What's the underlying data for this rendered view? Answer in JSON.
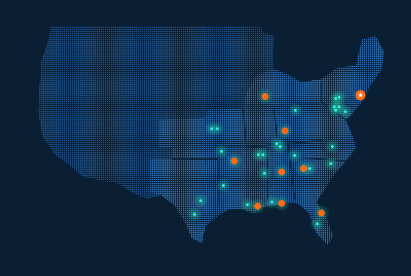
{
  "map": {
    "projection_bounds": {
      "lon": [
        -125,
        -67
      ],
      "lat": [
        25,
        49
      ]
    },
    "colors": {
      "background": "#0a1f33",
      "land_dots": "#1d4f86",
      "highlight_dots": "#2c6fb5",
      "state_border": "#0e2a45",
      "hotspot_glow": "#1fb59a",
      "cyan_marker": "#34f0e6",
      "orange_marker": "#ff6a13",
      "star_fill": "#ffffff"
    },
    "primary_location": {
      "icon": "star-icon",
      "lat": 41.23,
      "lon": -70.94
    },
    "orange_markers": [
      {
        "lat": 41.08,
        "lon": -87.14
      },
      {
        "lat": 37.23,
        "lon": -83.76
      },
      {
        "lat": 33.85,
        "lon": -92.38
      },
      {
        "lat": 32.62,
        "lon": -84.34
      },
      {
        "lat": 33.0,
        "lon": -80.61
      },
      {
        "lat": 28.77,
        "lon": -88.42
      },
      {
        "lat": 29.08,
        "lon": -84.34
      },
      {
        "lat": 28.0,
        "lon": -77.58
      }
    ],
    "cyan_markers": [
      {
        "lat": 37.46,
        "lon": -96.22
      },
      {
        "lat": 37.46,
        "lon": -95.29
      },
      {
        "lat": 34.92,
        "lon": -94.59
      },
      {
        "lat": 29.38,
        "lon": -98.09
      },
      {
        "lat": 27.85,
        "lon": -99.14
      },
      {
        "lat": 31.08,
        "lon": -94.24
      },
      {
        "lat": 34.54,
        "lon": -88.3
      },
      {
        "lat": 34.54,
        "lon": -87.49
      },
      {
        "lat": 35.77,
        "lon": -85.16
      },
      {
        "lat": 35.46,
        "lon": -84.58
      },
      {
        "lat": 39.54,
        "lon": -82.02
      },
      {
        "lat": 34.46,
        "lon": -82.13
      },
      {
        "lat": 33.0,
        "lon": -79.57
      },
      {
        "lat": 35.46,
        "lon": -75.72
      },
      {
        "lat": 33.54,
        "lon": -75.95
      },
      {
        "lat": 32.46,
        "lon": -87.26
      },
      {
        "lat": 28.92,
        "lon": -90.17
      },
      {
        "lat": 29.23,
        "lon": -85.98
      },
      {
        "lat": 26.77,
        "lon": -78.29
      },
      {
        "lat": 40.85,
        "lon": -75.14
      },
      {
        "lat": 41.0,
        "lon": -74.56
      },
      {
        "lat": 39.92,
        "lon": -75.38
      },
      {
        "lat": 39.92,
        "lon": -74.56
      },
      {
        "lat": 39.54,
        "lon": -75.14
      },
      {
        "lat": 39.38,
        "lon": -73.51
      }
    ]
  }
}
